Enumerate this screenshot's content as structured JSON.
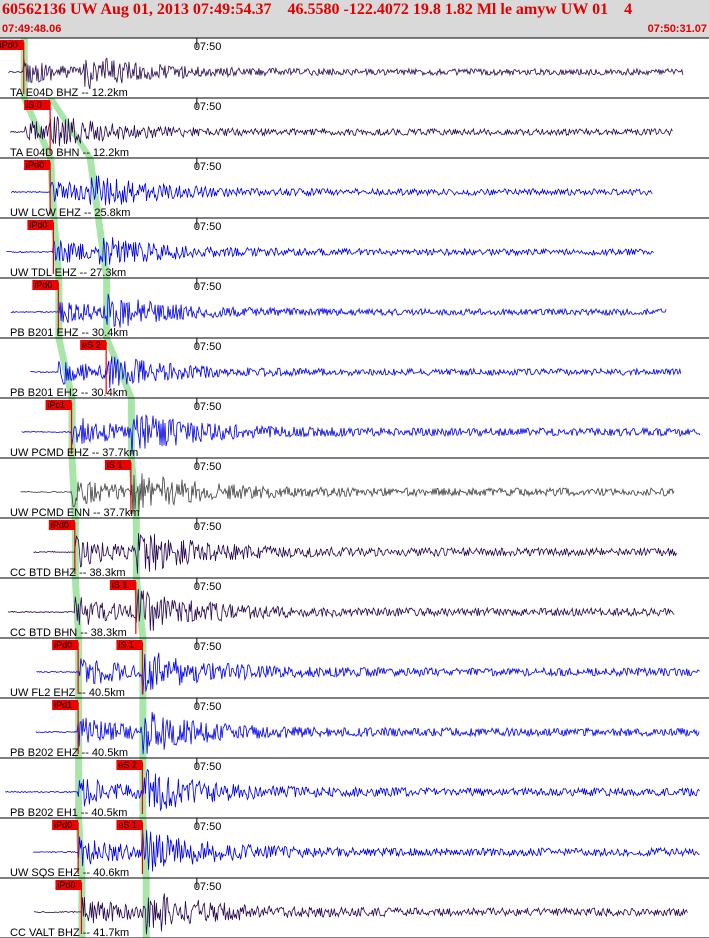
{
  "header": {
    "title": "60562136 UW Aug 01, 2013 07:49:54.37    46.5580 -122.4072 19.8 1.82 Ml le amyw UW 01    4",
    "start_time": "07:49:48.06",
    "end_time": "07:50:31.07"
  },
  "chart_data": {
    "type": "seismogram",
    "time_window": [
      "07:49:48.06",
      "07:50:31.07"
    ],
    "minute_tick_label": "07:50",
    "colors": {
      "blue": "#0000ee",
      "dark": "#2a0a50",
      "grey": "#404040",
      "pick": "#ee0000",
      "phase_band": "#9ee29e"
    },
    "traces": [
      {
        "label": "TA E04D BHZ -- 12.2km",
        "color": "dark",
        "picks": [
          "iPd0"
        ],
        "p_pick": "07:49:49.5",
        "s_pick": "",
        "s_label": ""
      },
      {
        "label": "TA E04D BHN -- 12.2km",
        "color": "dark",
        "picks": [
          "iS 0"
        ],
        "p_pick": "07:49:49.5",
        "s_pick": "07:49:51.1",
        "s_label": "iS 0"
      },
      {
        "label": "UW LCW EHZ -- 25.8km",
        "color": "blue",
        "picks": [
          "iPd0"
        ],
        "p_pick": "07:49:51.1",
        "s_pick": "07:49:53.5",
        "s_label": ""
      },
      {
        "label": "UW TDL EHZ -- 27.3km",
        "color": "blue",
        "picks": [
          "iPd0"
        ],
        "p_pick": "07:49:51.3",
        "s_pick": "07:49:54.0",
        "s_label": ""
      },
      {
        "label": "PB B201 EHZ -- 30.4km",
        "color": "blue",
        "picks": [
          "iPd0"
        ],
        "p_pick": "07:49:51.6",
        "s_pick": "07:49:54.5",
        "s_label": ""
      },
      {
        "label": "PB B201 EH2 -- 30.4km",
        "color": "blue",
        "picks": [
          "eS 2"
        ],
        "p_pick": "07:49:51.6",
        "s_pick": "07:49:54.5",
        "s_label": "eS 2"
      },
      {
        "label": "UW PCMD EHZ -- 37.7km",
        "color": "blue",
        "picks": [
          "iPc1"
        ],
        "p_pick": "07:49:52.4",
        "s_pick": "07:49:56.0",
        "s_label": ""
      },
      {
        "label": "UW PCMD ENN -- 37.7km",
        "color": "grey",
        "picks": [
          "iS 1"
        ],
        "p_pick": "07:49:52.4",
        "s_pick": "07:49:56.0",
        "s_label": "iS 1"
      },
      {
        "label": "CC BTD BHZ -- 38.3km",
        "color": "dark",
        "picks": [
          "iPd0"
        ],
        "p_pick": "07:49:52.6",
        "s_pick": "07:49:56.3",
        "s_label": ""
      },
      {
        "label": "CC BTD BHN -- 38.3km",
        "color": "dark",
        "picks": [
          "iS 1"
        ],
        "p_pick": "07:49:52.6",
        "s_pick": "07:49:56.3",
        "s_label": "iS 1"
      },
      {
        "label": "UW FL2 EHZ -- 40.5km",
        "color": "blue",
        "picks": [
          "iPd0",
          "iS 1"
        ],
        "p_pick": "07:49:52.8",
        "s_pick": "07:49:56.7",
        "s_label": "iS 1"
      },
      {
        "label": "PB B202 EHZ -- 40.5km",
        "color": "blue",
        "picks": [
          "iPd1"
        ],
        "p_pick": "07:49:52.8",
        "s_pick": "07:49:56.7",
        "s_label": ""
      },
      {
        "label": "PB B202 EH1 -- 40.5km",
        "color": "blue",
        "picks": [
          "eS 2"
        ],
        "p_pick": "07:49:52.8",
        "s_pick": "07:49:56.7",
        "s_label": "eS 2"
      },
      {
        "label": "UW SQS EHZ -- 40.6km",
        "color": "blue",
        "picks": [
          "iPd0",
          "eS 1"
        ],
        "p_pick": "07:49:52.8",
        "s_pick": "07:49:56.7",
        "s_label": "eS 1"
      },
      {
        "label": "CC VALT BHZ -- 41.7km",
        "color": "dark",
        "picks": [
          "iPd0"
        ],
        "p_pick": "07:49:53.0",
        "s_pick": "07:49:56.9",
        "s_label": ""
      }
    ]
  }
}
